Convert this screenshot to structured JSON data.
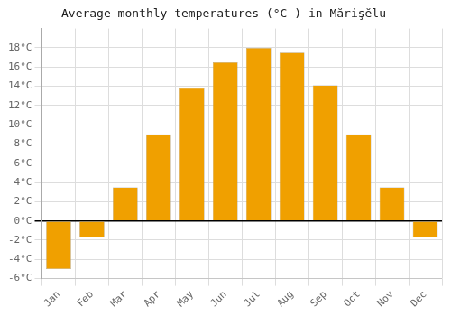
{
  "chart_data": {
    "type": "bar",
    "title": "Average monthly temperatures (°C ) in Mărişĕlu",
    "categories": [
      "Jan",
      "Feb",
      "Mar",
      "Apr",
      "May",
      "Jun",
      "Jul",
      "Aug",
      "Sep",
      "Oct",
      "Nov",
      "Dec"
    ],
    "values": [
      -5.0,
      -1.7,
      3.5,
      9.0,
      13.8,
      16.5,
      18.0,
      17.5,
      14.1,
      9.0,
      3.5,
      -1.7
    ],
    "color": "#F0A000",
    "ylim": [
      -6,
      20
    ],
    "yticks": [
      {
        "value": -6,
        "label": "-6°C"
      },
      {
        "value": -4,
        "label": "-4°C"
      },
      {
        "value": -2,
        "label": "-2°C"
      },
      {
        "value": 0,
        "label": "0°C"
      },
      {
        "value": 2,
        "label": "2°C"
      },
      {
        "value": 4,
        "label": "4°C"
      },
      {
        "value": 6,
        "label": "6°C"
      },
      {
        "value": 8,
        "label": "8°C"
      },
      {
        "value": 10,
        "label": "10°C"
      },
      {
        "value": 12,
        "label": "12°C"
      },
      {
        "value": 14,
        "label": "14°C"
      },
      {
        "value": 16,
        "label": "16°C"
      },
      {
        "value": 18,
        "label": "18°C"
      }
    ],
    "grid": true
  }
}
